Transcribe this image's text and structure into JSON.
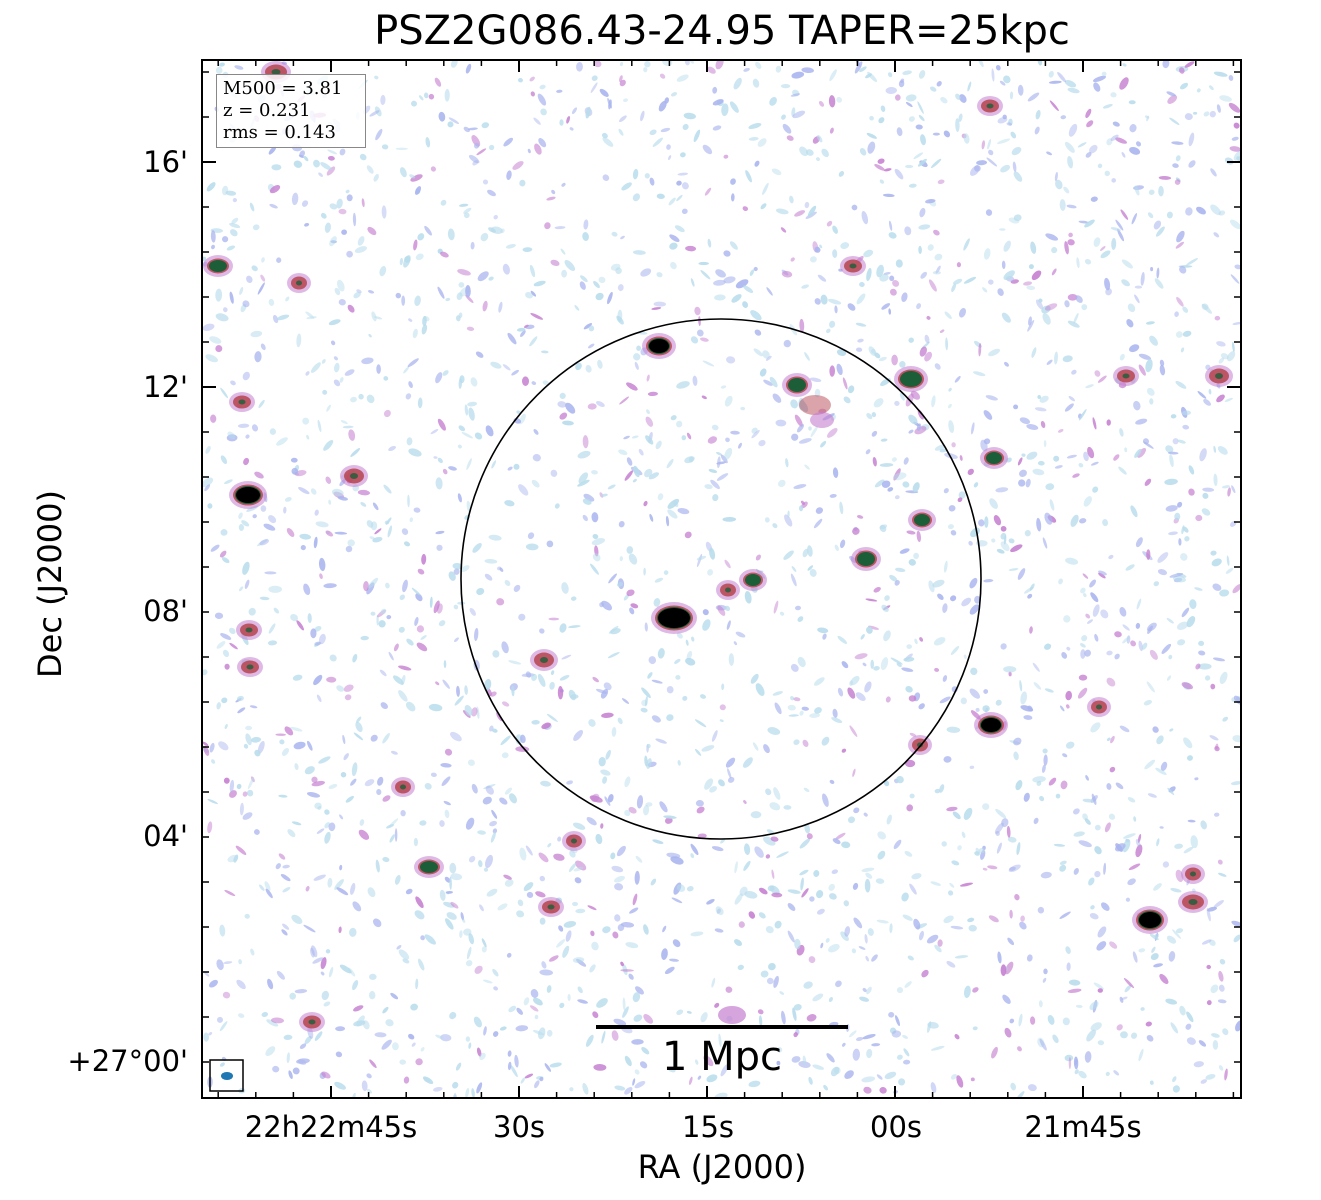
{
  "title": "PSZ2G086.43-24.95 TAPER=25kpc",
  "axes": {
    "xlabel": "RA (J2000)",
    "ylabel": "Dec (J2000)",
    "x_ticks": [
      "22h22m45s",
      "30s",
      "15s",
      "00s",
      "21m45s"
    ],
    "y_ticks": [
      "16'",
      "12'",
      "08'",
      "04'",
      "+27°00'"
    ]
  },
  "info_box": {
    "line1": "M500 = 3.81",
    "line2": "z = 0.231",
    "line3": "rms = 0.143"
  },
  "scale_bar": {
    "label": "1 Mpc"
  },
  "colors": {
    "frame": "#000000",
    "noise_light": "#b8dcec",
    "noise_blue": "#a9b4ee",
    "noise_pink": "#c57fd0",
    "source_red": "#b84a55",
    "source_green": "#1b5e38",
    "source_core": "#000000",
    "beam": "#1f77b4"
  }
}
